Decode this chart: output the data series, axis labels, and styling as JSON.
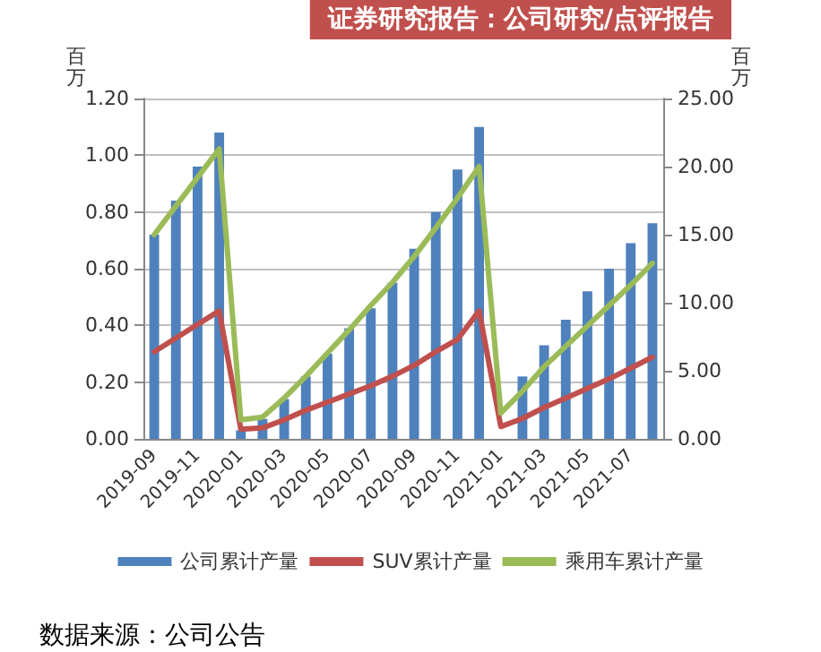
{
  "chart_data": {
    "type": "bar",
    "title": "证券研究报告：公司研究/点评报告",
    "categories": [
      "2019-09",
      null,
      "2019-11",
      null,
      "2020-01",
      null,
      "2020-03",
      null,
      "2020-05",
      null,
      "2020-07",
      null,
      "2020-09",
      null,
      "2020-11",
      null,
      "2021-01",
      null,
      "2021-03",
      null,
      "2021-05",
      null,
      "2021-07",
      null
    ],
    "series": [
      {
        "name": "公司累计产量",
        "color": "#4f81bd",
        "values": [
          0.72,
          0.84,
          0.96,
          1.08,
          0.03,
          0.07,
          0.14,
          0.22,
          0.3,
          0.39,
          0.46,
          0.55,
          0.67,
          0.8,
          0.95,
          1.1,
          null,
          0.22,
          0.33,
          0.42,
          0.52,
          0.6,
          0.69,
          0.76
        ]
      },
      {
        "name": "SUV累计产量",
        "type": "line",
        "axis": "y2",
        "color": "#c0504d",
        "values": [
          6.4,
          7.4,
          8.4,
          9.4,
          0.7,
          0.8,
          1.4,
          2.1,
          2.7,
          3.3,
          3.9,
          4.6,
          5.4,
          6.4,
          7.3,
          9.4,
          0.9,
          1.5,
          2.3,
          3.0,
          3.7,
          4.4,
          5.2,
          6.0
        ]
      },
      {
        "name": "乘用车累计产量",
        "type": "line",
        "axis": "y2",
        "color": "#9bbb59",
        "values": [
          15.0,
          17.1,
          19.2,
          21.3,
          1.4,
          1.6,
          3.0,
          4.6,
          6.3,
          8.0,
          9.8,
          11.5,
          13.4,
          15.5,
          17.7,
          20.0,
          1.9,
          3.5,
          5.3,
          6.8,
          8.3,
          9.8,
          11.3,
          12.9
        ]
      }
    ],
    "ylabel": "百万",
    "y2label": "百万",
    "ylim": [
      0,
      1.2
    ],
    "yticks": [
      {
        "value": 0,
        "label": "0.00"
      },
      {
        "value": 0.2,
        "label": "0.20"
      },
      {
        "value": 0.4,
        "label": "0.40"
      },
      {
        "value": 0.6,
        "label": "0.60"
      },
      {
        "value": 0.8,
        "label": "0.80"
      },
      {
        "value": 1.0,
        "label": "1.00"
      },
      {
        "value": 1.2,
        "label": "1.20"
      }
    ],
    "y2lim": [
      0,
      25
    ],
    "y2ticks": [
      {
        "value": 0,
        "label": "0.00"
      },
      {
        "value": 5,
        "label": "5.00"
      },
      {
        "value": 10,
        "label": "10.00"
      },
      {
        "value": 15,
        "label": "15.00"
      },
      {
        "value": 20,
        "label": "20.00"
      },
      {
        "value": 25,
        "label": "25.00"
      }
    ],
    "grid": "y",
    "legend": "bottom",
    "marker": "none",
    "line_style": "solid",
    "annotations": [
      "数据来源：公司公告"
    ]
  }
}
